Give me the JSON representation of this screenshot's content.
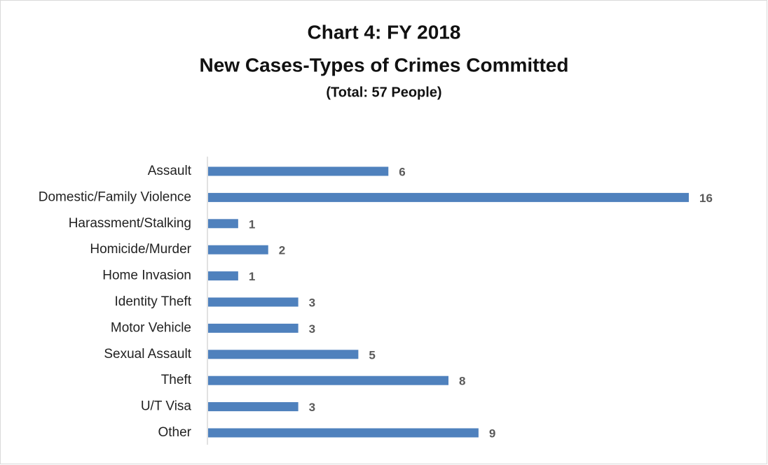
{
  "chart_data": {
    "type": "bar",
    "orientation": "horizontal",
    "title": "Chart 4: FY 2018",
    "subtitle": "New Cases-Types of Crimes Committed",
    "note": "(Total: 57 People)",
    "categories": [
      "Assault",
      "Domestic/Family Violence",
      "Harassment/Stalking",
      "Homicide/Murder",
      "Home Invasion",
      "Identity Theft",
      "Motor Vehicle",
      "Sexual Assault",
      "Theft",
      "U/T Visa",
      "Other"
    ],
    "values": [
      6,
      16,
      1,
      2,
      1,
      3,
      3,
      5,
      8,
      3,
      9
    ],
    "color": "#4f81bd",
    "xlim": [
      0,
      16
    ]
  }
}
